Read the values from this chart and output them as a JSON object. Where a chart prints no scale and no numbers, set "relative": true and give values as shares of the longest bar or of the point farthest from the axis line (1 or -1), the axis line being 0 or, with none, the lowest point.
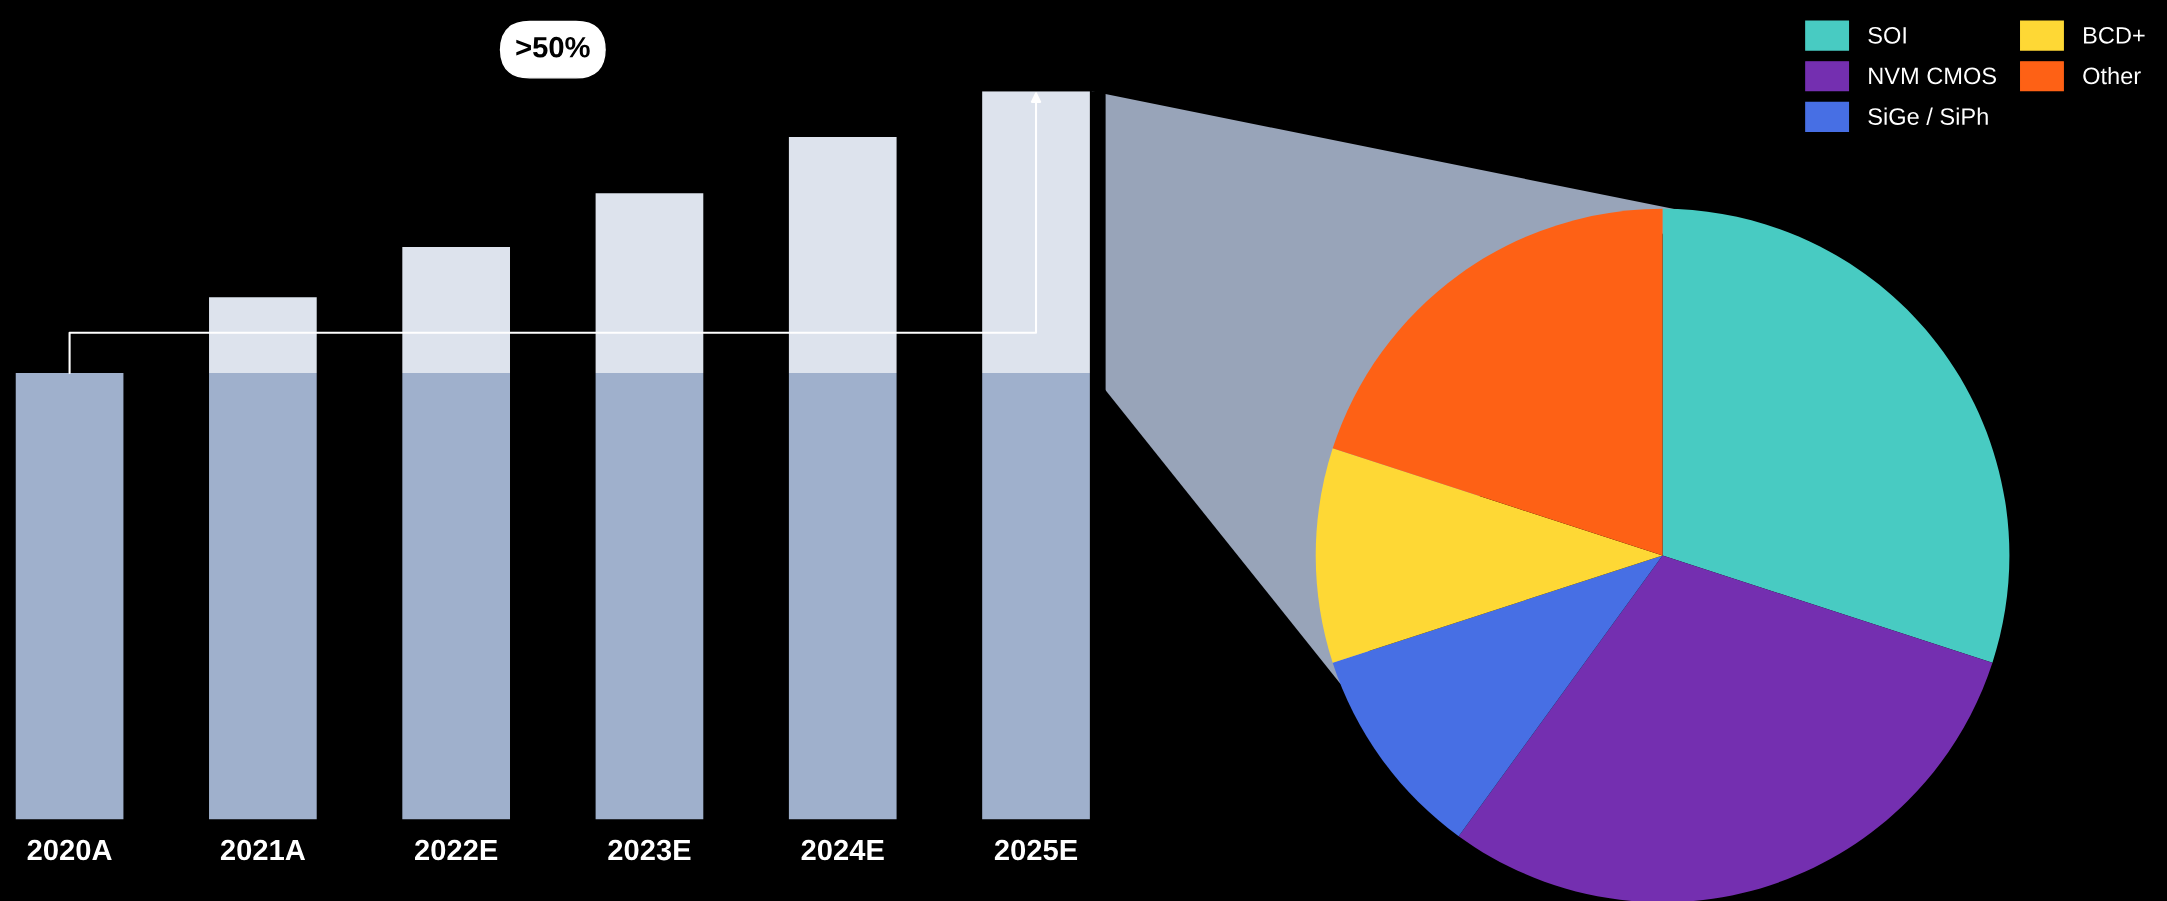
{
  "chart_data": [
    {
      "type": "bar",
      "stacked": true,
      "relative": true,
      "categories": [
        "2020A",
        "2021A",
        "2022E",
        "2023E",
        "2024E",
        "2025E"
      ],
      "series": [
        {
          "color": "#9fb0cc",
          "values": [
            0.613,
            0.613,
            0.613,
            0.613,
            0.613,
            0.613
          ]
        },
        {
          "color": "#dde3ed",
          "values": [
            0,
            0.104,
            0.173,
            0.247,
            0.324,
            0.387
          ]
        }
      ],
      "annotations": [
        ">50%"
      ]
    },
    {
      "type": "pie",
      "categories": [
        "SOI",
        "NVM CMOS",
        "SiGe / SiPh",
        "BCD+",
        "Other"
      ],
      "values": [
        30,
        30,
        10,
        10,
        20
      ],
      "colors": [
        "#48cbc2",
        "#742fb0",
        "#476fe4",
        "#fed835",
        "#fe6115"
      ],
      "legend": "top right"
    }
  ]
}
